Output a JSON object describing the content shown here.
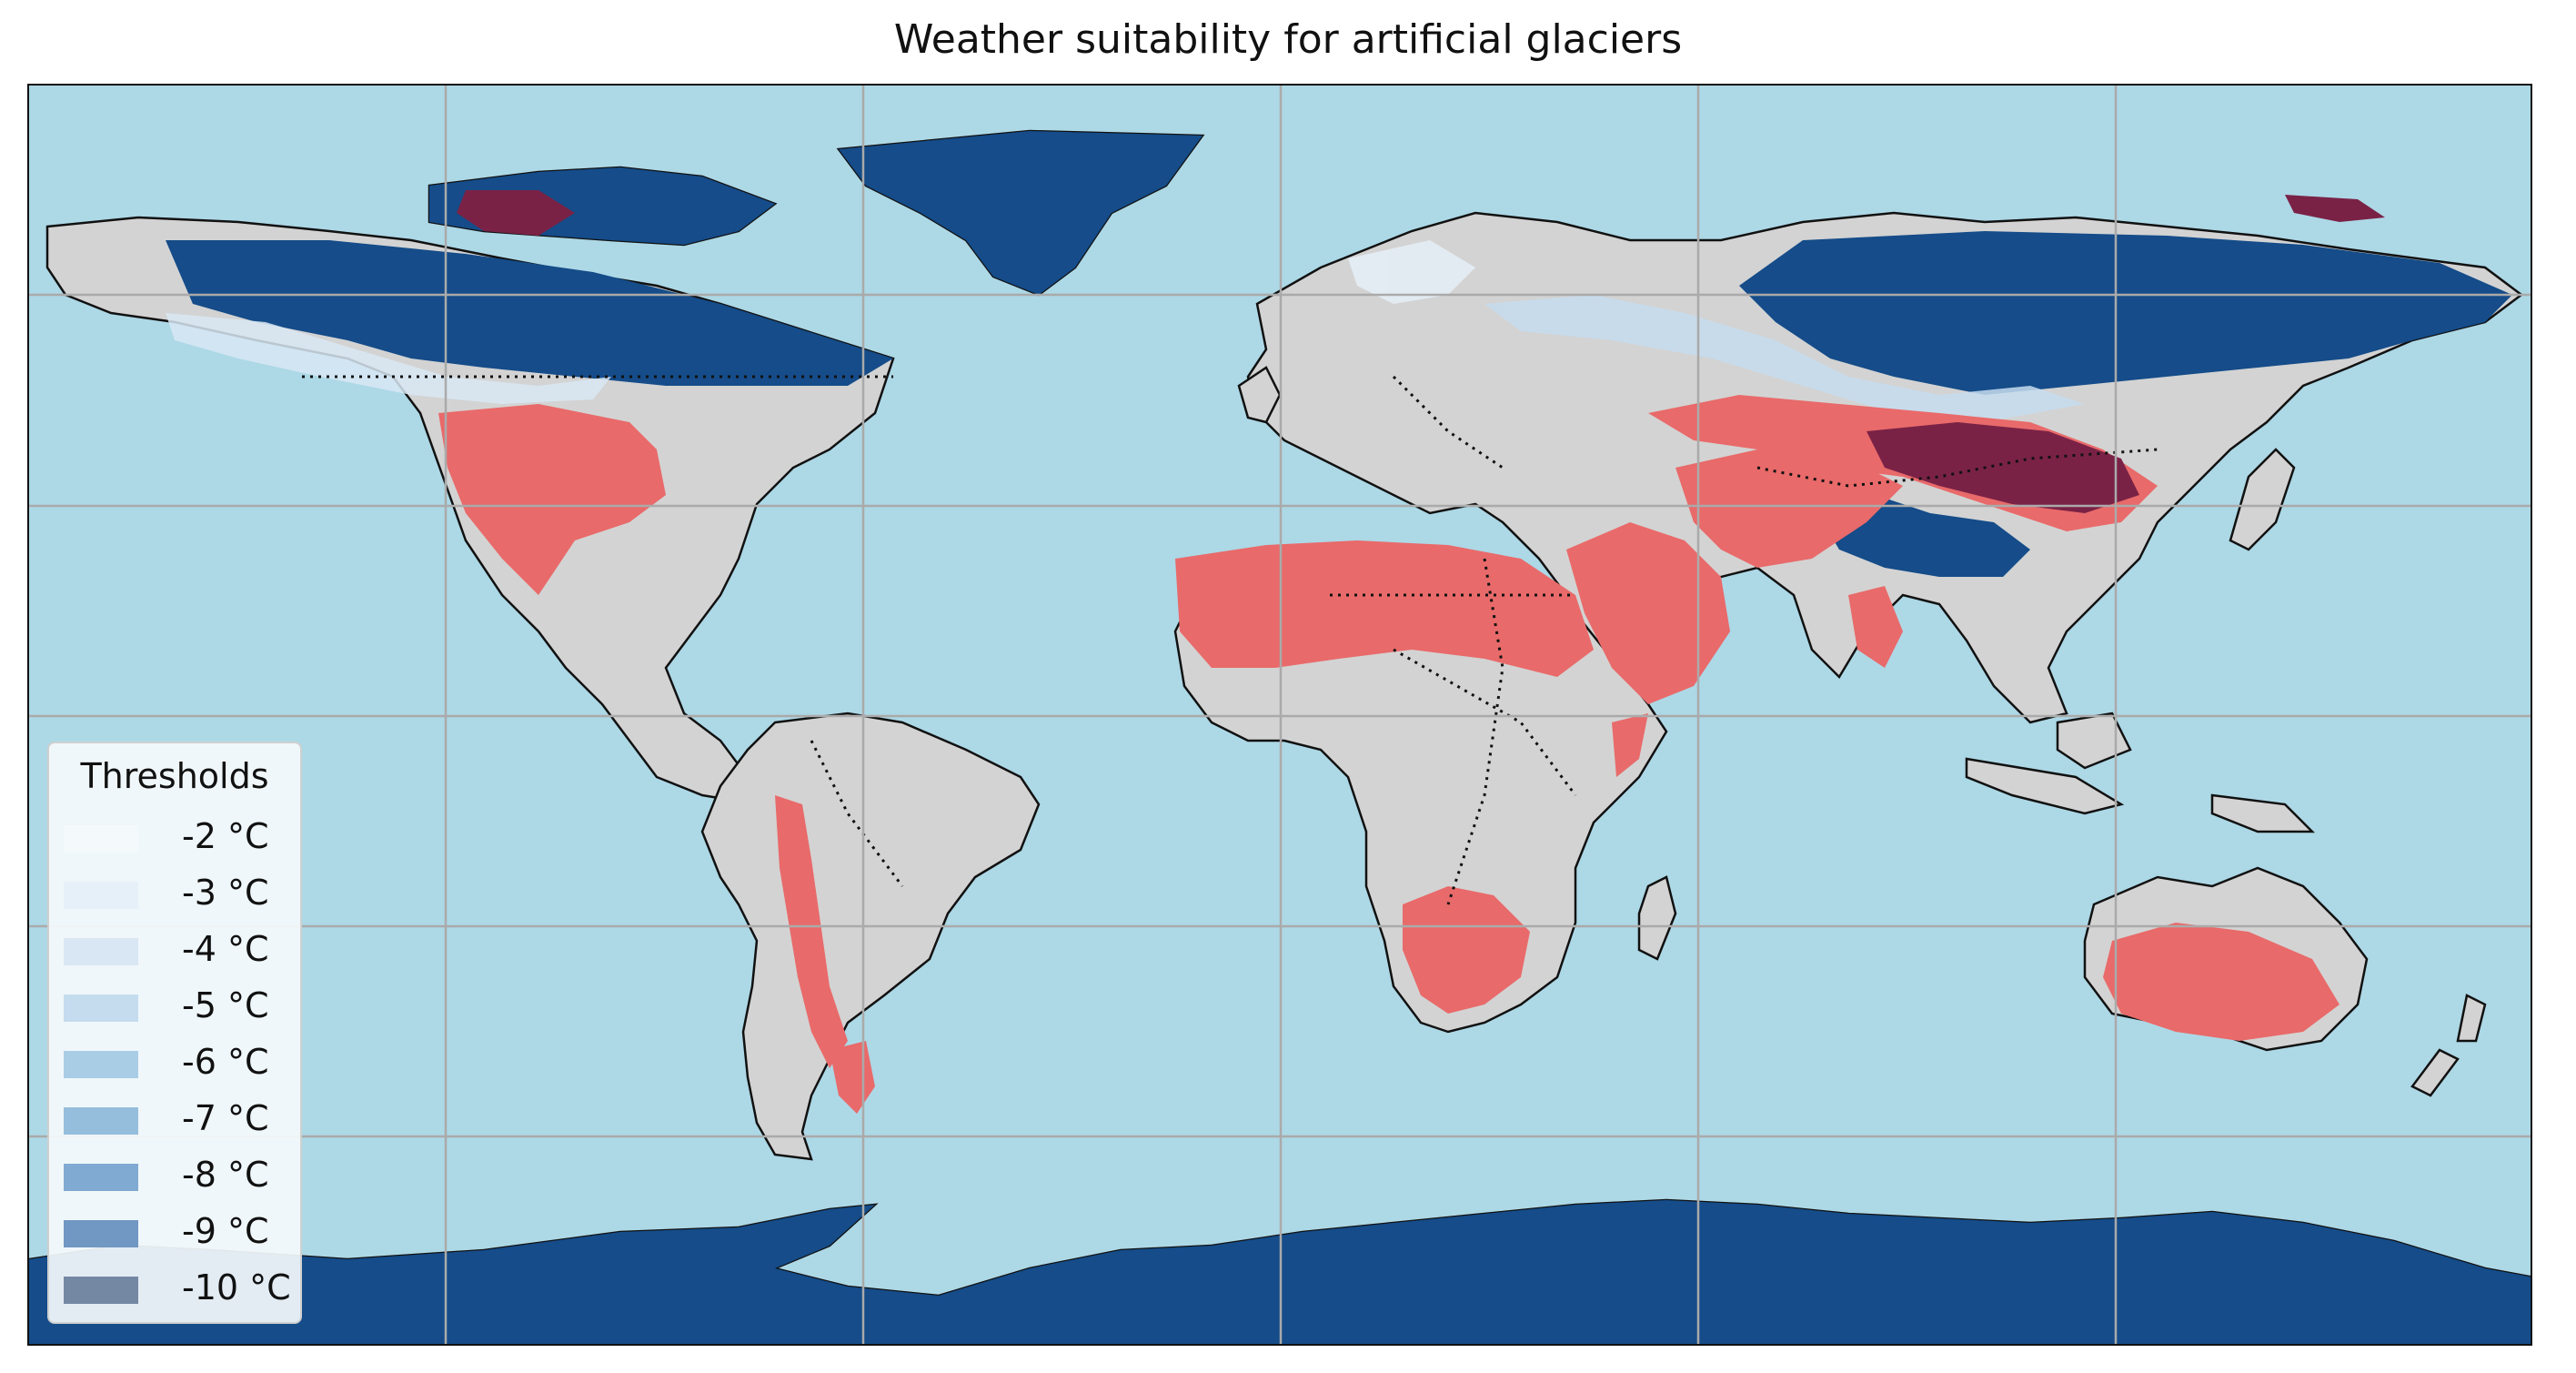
{
  "title": "Weather suitability for artificial glaciers",
  "colors": {
    "ocean": "#add8e6",
    "land": "#d3d3d3",
    "ice": "#154c89",
    "suitable_warm": "#e96a6a",
    "suitable_cold": "#7a2246",
    "gridline": "#aaaaaa",
    "border": "#111111"
  },
  "legend": {
    "title": "Thresholds",
    "items": [
      {
        "label": "-2 °C",
        "color": "#f4f9fc"
      },
      {
        "label": "-3 °C",
        "color": "#e6f0f8"
      },
      {
        "label": "-4 °C",
        "color": "#d8e7f3"
      },
      {
        "label": "-5 °C",
        "color": "#c5dcee"
      },
      {
        "label": "-6 °C",
        "color": "#aacde6"
      },
      {
        "label": "-7 °C",
        "color": "#95bedd"
      },
      {
        "label": "-8 °C",
        "color": "#80aad2"
      },
      {
        "label": "-9 °C",
        "color": "#7197c3"
      },
      {
        "label": "-10 °C",
        "color": "#7588a3"
      }
    ]
  }
}
